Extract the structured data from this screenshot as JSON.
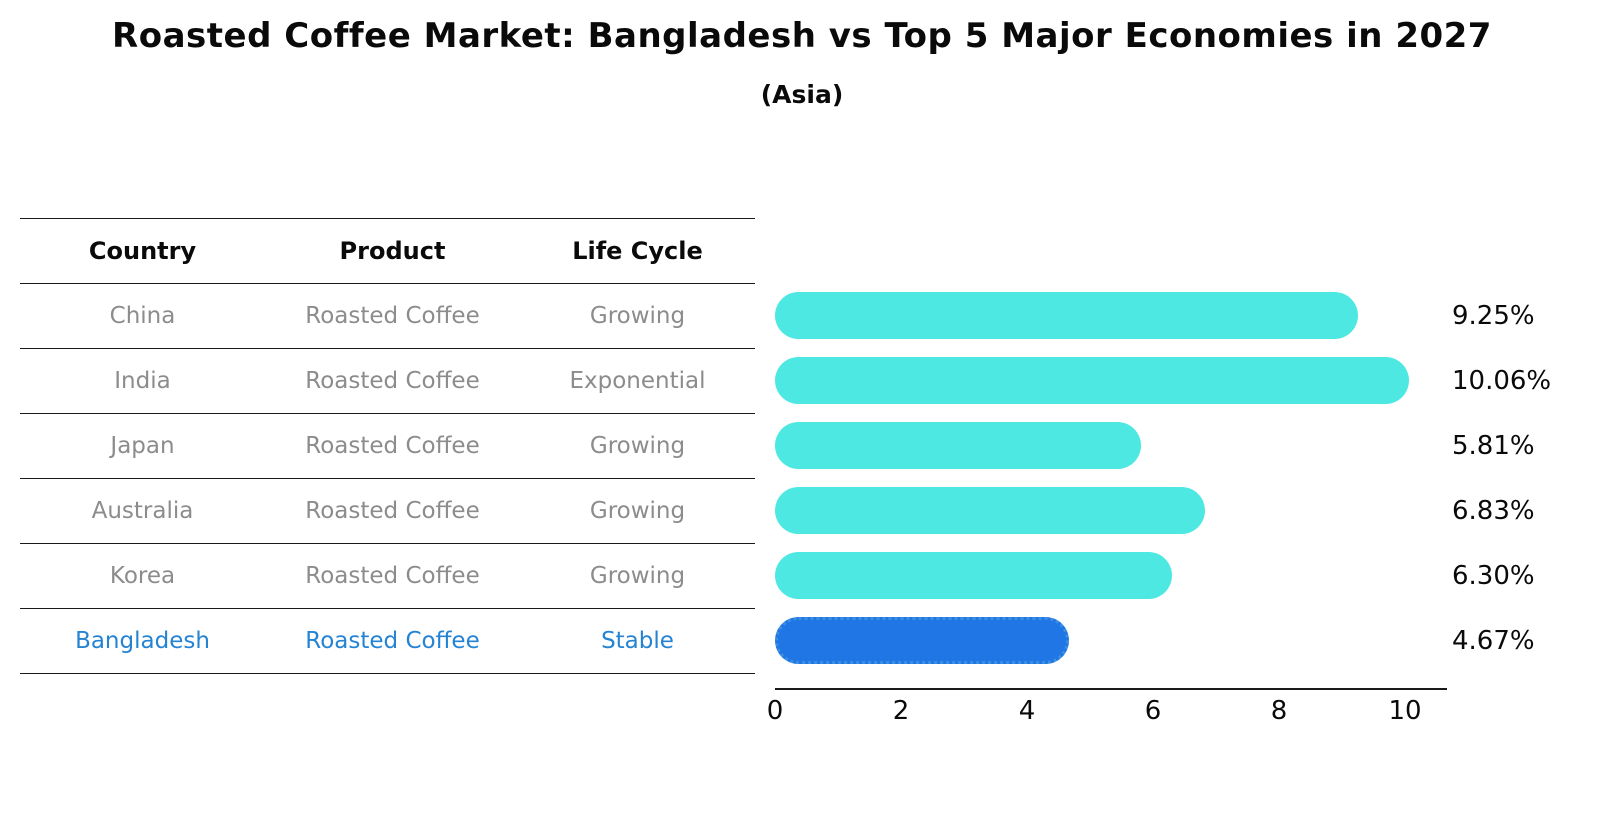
{
  "header": {
    "title": "Roasted Coffee Market: Bangladesh vs Top 5 Major Economies in 2027",
    "subtitle": "(Asia)"
  },
  "table": {
    "columns": [
      "Country",
      "Product",
      "Life Cycle"
    ],
    "rows": [
      {
        "country": "China",
        "product": "Roasted Coffee",
        "life_cycle": "Growing",
        "highlight": false
      },
      {
        "country": "India",
        "product": "Roasted Coffee",
        "life_cycle": "Exponential",
        "highlight": false
      },
      {
        "country": "Japan",
        "product": "Roasted Coffee",
        "life_cycle": "Growing",
        "highlight": false
      },
      {
        "country": "Australia",
        "product": "Roasted Coffee",
        "life_cycle": "Growing",
        "highlight": false
      },
      {
        "country": "Korea",
        "product": "Roasted Coffee",
        "life_cycle": "Growing",
        "highlight": false
      },
      {
        "country": "Bangladesh",
        "product": "Roasted Coffee",
        "life_cycle": "Stable",
        "highlight": true
      }
    ]
  },
  "chart_data": {
    "type": "bar",
    "orientation": "horizontal",
    "title": "Roasted Coffee Market: Bangladesh vs Top 5 Major Economies in 2027",
    "subtitle": "(Asia)",
    "categories": [
      "China",
      "India",
      "Japan",
      "Australia",
      "Korea",
      "Bangladesh"
    ],
    "values": [
      9.25,
      10.06,
      5.81,
      6.83,
      6.3,
      4.67
    ],
    "value_labels": [
      "9.25%",
      "10.06%",
      "5.81%",
      "6.83%",
      "6.30%",
      "4.67%"
    ],
    "xlabel": "",
    "ylabel": "",
    "xlim": [
      0,
      10.6
    ],
    "xticks": [
      0,
      2,
      4,
      6,
      8,
      10
    ],
    "grid": false,
    "legend": "none",
    "bar_color": "#4DE8E2",
    "highlight_index": 5,
    "highlight_bar_color": "#2176E6",
    "highlight_text_color": "#2583D3"
  }
}
